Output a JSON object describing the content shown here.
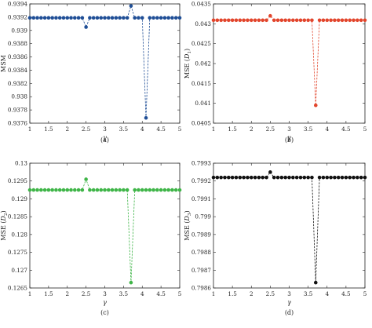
{
  "chart_data": [
    {
      "type": "line",
      "panel_label": "(a)",
      "ylabel_main": "MSM",
      "ylabel_sub": "",
      "xlabel": "γ",
      "xlim": [
        1,
        5
      ],
      "ylim": [
        0.9376,
        0.9394
      ],
      "xticks": [
        "1",
        "1.5",
        "2",
        "2.5",
        "3",
        "3.5",
        "4",
        "4.5",
        "5"
      ],
      "yticks": [
        "0.9376",
        "0.9378",
        "0.938",
        "0.9382",
        "0.9384",
        "0.9386",
        "0.9388",
        "0.939",
        "0.9392",
        "0.9394"
      ],
      "grid": false,
      "color": "#1f4e96",
      "baseline": 0.93919,
      "step": 0.1,
      "anomalies": [
        {
          "x": 2.5,
          "y": 0.93905
        },
        {
          "x": 3.7,
          "y": 0.93937
        },
        {
          "x": 4.1,
          "y": 0.93768
        }
      ]
    },
    {
      "type": "line",
      "panel_label": "(b)",
      "ylabel_main": "MSE",
      "ylabel_sub": "1",
      "xlabel": "γ",
      "xlim": [
        1,
        5
      ],
      "ylim": [
        0.0405,
        0.0435
      ],
      "xticks": [
        "1",
        "1.5",
        "2",
        "2.5",
        "3",
        "3.5",
        "4",
        "4.5",
        "5"
      ],
      "yticks": [
        "0.0405",
        "0.041",
        "0.0415",
        "0.042",
        "0.0425",
        "0.043",
        "0.0435"
      ],
      "grid": false,
      "color": "#e2452c",
      "baseline": 0.04309,
      "step": 0.1,
      "anomalies": [
        {
          "x": 2.5,
          "y": 0.0432
        },
        {
          "x": 3.7,
          "y": 0.04095
        }
      ]
    },
    {
      "type": "line",
      "panel_label": "(c)",
      "ylabel_main": "MSE",
      "ylabel_sub": "2",
      "xlabel": "γ",
      "xlim": [
        1,
        5
      ],
      "ylim": [
        0.1265,
        0.13
      ],
      "xticks": [
        "1",
        "1.5",
        "2",
        "2.5",
        "3",
        "3.5",
        "4",
        "4.5",
        "5"
      ],
      "yticks": [
        "0.1265",
        "0.127",
        "0.1275",
        "0.128",
        "0.1285",
        "0.129",
        "0.1295",
        "0.13"
      ],
      "grid": false,
      "color": "#3fb548",
      "baseline": 0.12925,
      "step": 0.1,
      "anomalies": [
        {
          "x": 2.5,
          "y": 0.12955
        },
        {
          "x": 3.7,
          "y": 0.12665
        }
      ]
    },
    {
      "type": "line",
      "panel_label": "(d)",
      "ylabel_main": "MSE",
      "ylabel_sub": "3",
      "xlabel": "γ",
      "xlim": [
        1,
        5
      ],
      "ylim": [
        0.7986,
        0.7993
      ],
      "xticks": [
        "1",
        "1.5",
        "2",
        "2.5",
        "3",
        "3.5",
        "4",
        "4.5",
        "5"
      ],
      "yticks": [
        "0.7986",
        "0.7987",
        "0.7988",
        "0.7989",
        "0.799",
        "0.7991",
        "0.7992",
        "0.7993"
      ],
      "grid": false,
      "color": "#111111",
      "baseline": 0.79922,
      "step": 0.1,
      "anomalies": [
        {
          "x": 2.5,
          "y": 0.79925
        },
        {
          "x": 3.7,
          "y": 0.79863
        }
      ]
    }
  ]
}
